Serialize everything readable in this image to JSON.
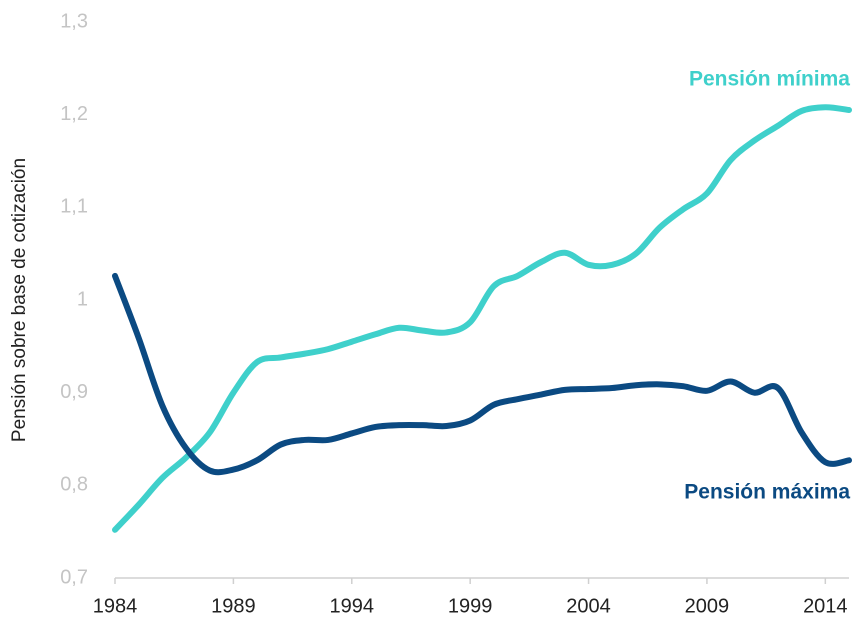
{
  "chart_data": {
    "type": "line",
    "ylabel": "Pensión sobre base de cotización",
    "x": [
      1984,
      1985,
      1986,
      1987,
      1988,
      1989,
      1990,
      1991,
      1992,
      1993,
      1994,
      1995,
      1996,
      1997,
      1998,
      1999,
      2000,
      2001,
      2002,
      2003,
      2004,
      2005,
      2006,
      2007,
      2008,
      2009,
      2010,
      2011,
      2012,
      2013,
      2014,
      2015
    ],
    "series": [
      {
        "name": "Pensión mínima",
        "color": "#3fd0cb",
        "values": [
          0.752,
          0.779,
          0.808,
          0.83,
          0.857,
          0.9,
          0.933,
          0.938,
          0.942,
          0.947,
          0.955,
          0.963,
          0.97,
          0.967,
          0.965,
          0.976,
          1.015,
          1.026,
          1.041,
          1.051,
          1.038,
          1.038,
          1.05,
          1.078,
          1.098,
          1.115,
          1.151,
          1.172,
          1.188,
          1.204,
          1.208,
          1.205
        ]
      },
      {
        "name": "Pensión máxima",
        "color": "#0b4a82",
        "values": [
          1.026,
          0.959,
          0.886,
          0.84,
          0.816,
          0.817,
          0.827,
          0.844,
          0.849,
          0.849,
          0.856,
          0.863,
          0.865,
          0.865,
          0.864,
          0.87,
          0.887,
          0.893,
          0.898,
          0.903,
          0.904,
          0.905,
          0.908,
          0.909,
          0.907,
          0.902,
          0.912,
          0.9,
          0.905,
          0.857,
          0.825,
          0.827
        ]
      }
    ],
    "xlim": [
      1984,
      2015
    ],
    "xticks": [
      1984,
      1989,
      1994,
      1999,
      2004,
      2009,
      2014
    ],
    "ylim": [
      0.7,
      1.3
    ],
    "yticks": [
      {
        "value": 0.7,
        "label": "0,7"
      },
      {
        "value": 0.8,
        "label": "0,8"
      },
      {
        "value": 0.9,
        "label": "0,9"
      },
      1,
      {
        "value": 1.1,
        "label": "1,1"
      },
      {
        "value": 1.2,
        "label": "1,2"
      },
      {
        "value": 1.3,
        "label": "1,3"
      }
    ],
    "grid": false
  }
}
